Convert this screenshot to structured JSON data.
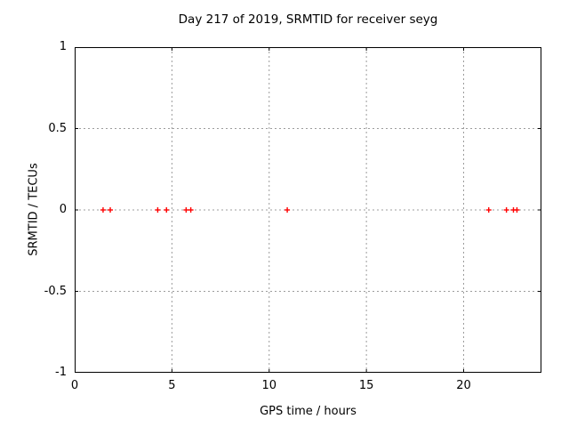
{
  "chart_data": {
    "type": "scatter",
    "title": "Day 217 of 2019, SRMTID for receiver seyg",
    "xlabel": "GPS time / hours",
    "ylabel": "SRMTID / TECUs",
    "xlim": [
      0,
      24
    ],
    "ylim": [
      -1,
      1
    ],
    "xticks": [
      0,
      5,
      10,
      15,
      20
    ],
    "yticks": [
      1,
      0.5,
      0,
      -0.5,
      -1
    ],
    "grid": true,
    "legend": "none",
    "marker": "plus",
    "colors": {
      "marker": "#ff0000",
      "grid": "#9c9c9c",
      "axis": "#000000",
      "background": "#ffffff"
    },
    "series": [
      {
        "name": "SRMTID",
        "points": [
          {
            "x": 1.46,
            "y": 0
          },
          {
            "x": 1.83,
            "y": 0
          },
          {
            "x": 4.27,
            "y": 0
          },
          {
            "x": 4.72,
            "y": 0
          },
          {
            "x": 5.73,
            "y": 0
          },
          {
            "x": 5.97,
            "y": 0
          },
          {
            "x": 10.93,
            "y": 0
          },
          {
            "x": 21.29,
            "y": 0
          },
          {
            "x": 22.2,
            "y": 0
          },
          {
            "x": 22.56,
            "y": 0
          },
          {
            "x": 22.74,
            "y": 0
          }
        ]
      }
    ]
  }
}
